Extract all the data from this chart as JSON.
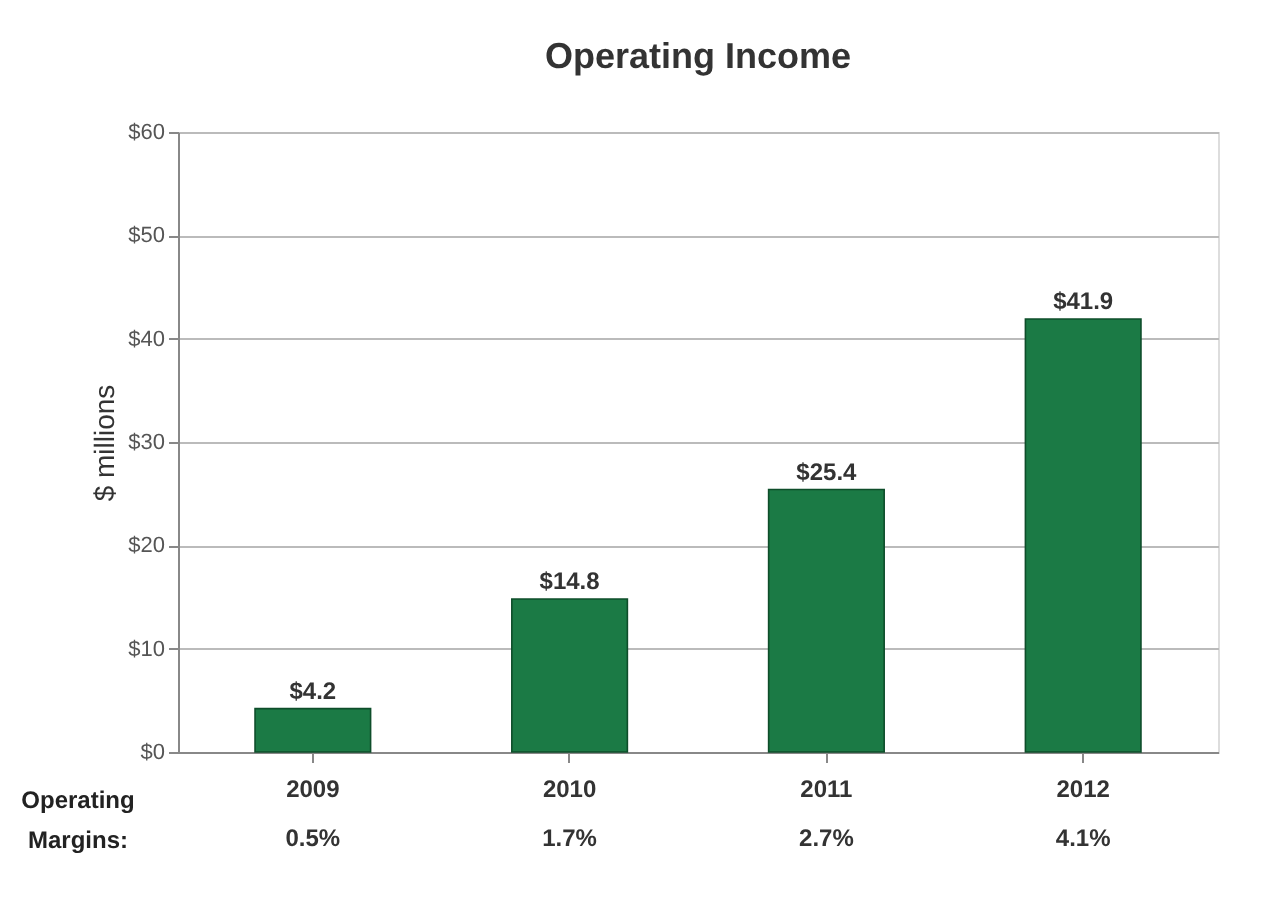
{
  "chart_data": {
    "type": "bar",
    "title": "Operating Income",
    "ylabel": "$ millions",
    "categories": [
      "2009",
      "2010",
      "2011",
      "2012"
    ],
    "values": [
      4.2,
      14.8,
      25.4,
      41.9
    ],
    "value_labels": [
      "$4.2",
      "$14.8",
      "$25.4",
      "$41.9"
    ],
    "color": "#1b7a45",
    "ylim": [
      0,
      60
    ],
    "yticks": [
      {
        "value": 0,
        "label": "$0"
      },
      {
        "value": 10,
        "label": "$10"
      },
      {
        "value": 20,
        "label": "$20"
      },
      {
        "value": 30,
        "label": "$30"
      },
      {
        "value": 40,
        "label": "$40"
      },
      {
        "value": 50,
        "label": "$50"
      },
      {
        "value": 60,
        "label": "$60"
      }
    ],
    "grid": "y",
    "annotations": [
      "Operating Margins:",
      "0.5%",
      "1.7%",
      "2.7%",
      "4.1%"
    ]
  }
}
